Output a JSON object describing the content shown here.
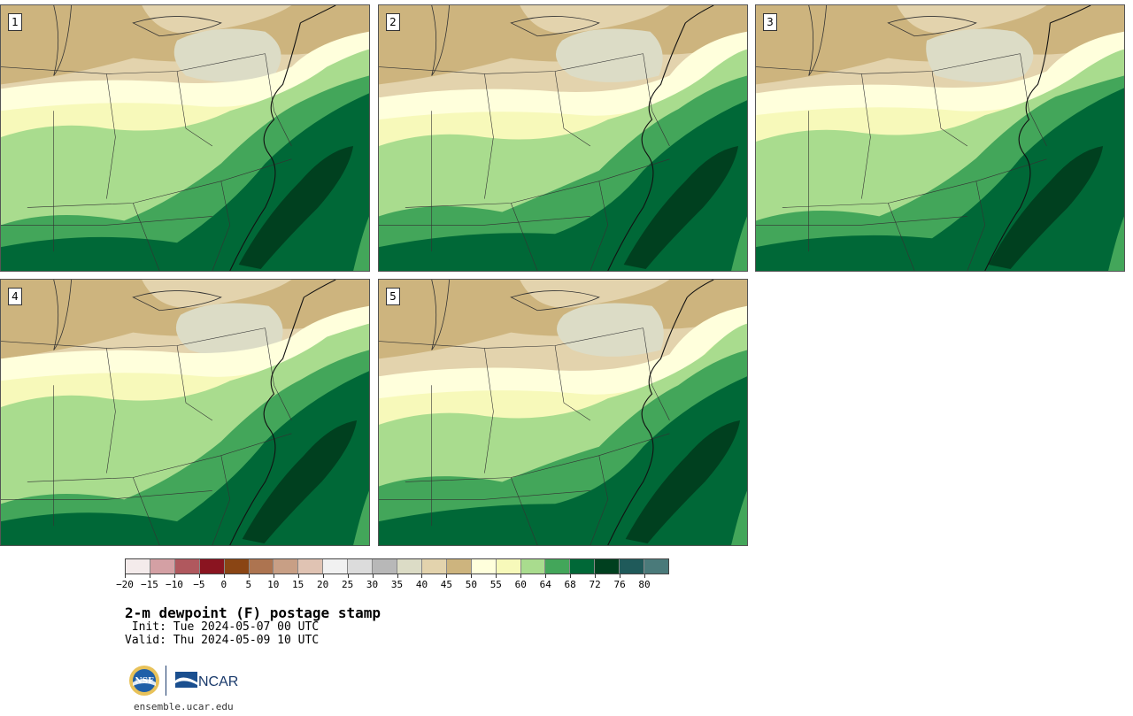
{
  "panels": [
    {
      "label": "1"
    },
    {
      "label": "2"
    },
    {
      "label": "3"
    },
    {
      "label": "4"
    },
    {
      "label": "5"
    }
  ],
  "colorbar": {
    "colors": [
      "#f4ebeb",
      "#d4a0a4",
      "#b0585e",
      "#8a1420",
      "#8a4514",
      "#ad7450",
      "#c89f85",
      "#e0c3b3",
      "#f1f1f1",
      "#dcdcdc",
      "#b8b8b8",
      "#dcdcc6",
      "#e3d3ad",
      "#cdb47e",
      "#ffffdc",
      "#f7f9ba",
      "#a9dc8e",
      "#43a65a",
      "#006837",
      "#00401f",
      "#1f5a5a",
      "#4a7a7a"
    ],
    "tick_labels": [
      "−20",
      "−15",
      "−10",
      "−5",
      "0",
      "5",
      "10",
      "15",
      "20",
      "25",
      "30",
      "35",
      "40",
      "45",
      "50",
      "55",
      "60",
      "64",
      "68",
      "72",
      "76",
      "80"
    ]
  },
  "title": "2-m dewpoint (F) postage stamp",
  "init": " Init: Tue 2024-05-07 00 UTC",
  "valid": "Valid: Thu 2024-05-09 10 UTC",
  "logos": {
    "left": "NSF",
    "right": "NCAR"
  },
  "site": "ensemble.ucar.edu"
}
